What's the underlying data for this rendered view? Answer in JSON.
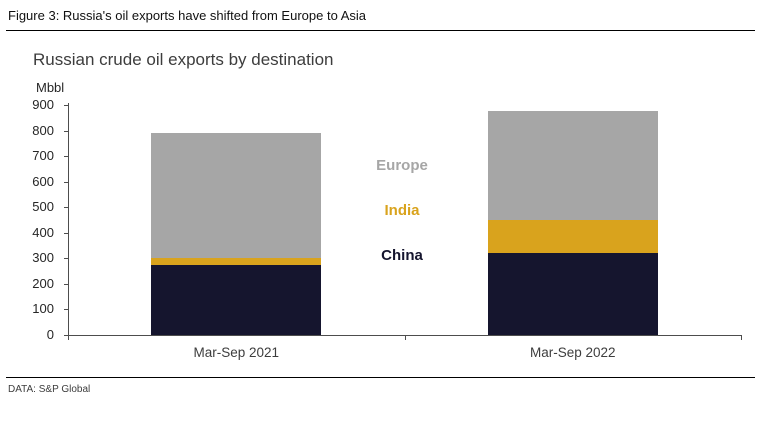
{
  "figure": {
    "caption": "Figure 3: Russia's oil exports have shifted from Europe to Asia",
    "source": "DATA: S&P Global"
  },
  "chart_data": {
    "type": "bar",
    "stacked": true,
    "title": "Russian crude oil exports by destination",
    "xlabel": "",
    "ylabel": "Mbbl",
    "categories": [
      "Mar-Sep 2021",
      "Mar-Sep 2022"
    ],
    "series": [
      {
        "name": "China",
        "color": "#15152e",
        "values": [
          275,
          320
        ]
      },
      {
        "name": "India",
        "color": "#d9a31d",
        "values": [
          25,
          130
        ]
      },
      {
        "name": "Europe",
        "color": "#a6a6a6",
        "values": [
          490,
          425
        ]
      }
    ],
    "totals": [
      790,
      875
    ],
    "ylim": [
      0,
      900
    ],
    "ytick_step": 100,
    "grid": false,
    "legend_position": "center-between-bars",
    "legend_order_top_to_bottom": [
      "Europe",
      "India",
      "China"
    ]
  }
}
